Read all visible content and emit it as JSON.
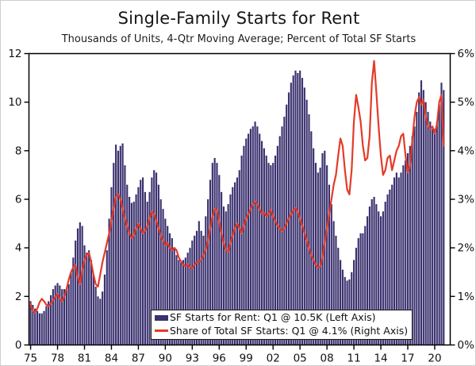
{
  "page": {
    "title": "Single-Family Starts for Rent",
    "subtitle": "Thousands of Units, 4-Qtr Moving Average; Percent of Total SF Starts"
  },
  "legend": {
    "bars_label": "SF Starts for Rent: Q1 @ 10.5K (Left Axis)",
    "line_label": "Share of Total SF Starts: Q1 @ 4.1% (Right Axis)"
  },
  "colors": {
    "bar": "#3a316f",
    "line": "#e53a28",
    "axis": "#000000",
    "tick_text": "#111111"
  },
  "chart_data": {
    "type": "bar",
    "title": "Single-Family Starts for Rent",
    "subtitle": "Thousands of Units, 4-Qtr Moving Average; Percent of Total SF Starts",
    "frequency": "quarterly",
    "start_period": "1975Q1",
    "end_period": "2021Q1",
    "x_tick_labels": [
      "75",
      "78",
      "81",
      "84",
      "87",
      "90",
      "93",
      "96",
      "99",
      "02",
      "05",
      "08",
      "11",
      "14",
      "17",
      "20"
    ],
    "left_axis": {
      "ticks": [
        0,
        2,
        4,
        6,
        8,
        10,
        12
      ],
      "range": [
        0,
        12
      ],
      "units": "thousands of units"
    },
    "right_axis": {
      "tick_labels": [
        "0%",
        "1%",
        "2%",
        "3%",
        "4%",
        "5%",
        "6%"
      ],
      "ticks": [
        0,
        1,
        2,
        3,
        4,
        5,
        6
      ],
      "range": [
        0,
        6
      ],
      "units": "percent of total SF starts"
    },
    "grid": false,
    "legend_position": "bottom-right-inside",
    "series": [
      {
        "name": "SF Starts for Rent",
        "type": "bar",
        "axis": "left",
        "latest_label": "Q1 @ 10.5K",
        "values": [
          1.8,
          1.65,
          1.5,
          1.4,
          1.3,
          1.3,
          1.4,
          1.6,
          1.8,
          2.05,
          2.3,
          2.45,
          2.55,
          2.45,
          2.3,
          2.3,
          2.3,
          2.5,
          3.0,
          3.6,
          4.3,
          4.8,
          5.05,
          4.9,
          4.1,
          3.8,
          3.9,
          3.5,
          2.9,
          2.4,
          2.0,
          1.9,
          2.2,
          2.9,
          3.9,
          5.2,
          6.5,
          7.5,
          8.25,
          8.0,
          8.2,
          8.3,
          7.4,
          6.6,
          6.1,
          5.85,
          5.9,
          6.2,
          6.5,
          6.8,
          6.9,
          6.3,
          5.9,
          6.3,
          6.9,
          7.2,
          7.1,
          6.6,
          6.0,
          5.6,
          5.2,
          4.9,
          4.6,
          4.4,
          4.0,
          3.7,
          3.5,
          3.4,
          3.5,
          3.6,
          3.8,
          4.0,
          4.3,
          4.5,
          4.7,
          5.1,
          4.7,
          4.5,
          5.3,
          6.0,
          6.8,
          7.5,
          7.7,
          7.5,
          7.0,
          6.3,
          5.7,
          5.5,
          5.8,
          6.2,
          6.5,
          6.7,
          6.9,
          7.2,
          7.8,
          8.2,
          8.5,
          8.7,
          8.9,
          9.0,
          9.2,
          9.0,
          8.7,
          8.4,
          8.1,
          7.8,
          7.5,
          7.4,
          7.5,
          7.8,
          8.2,
          8.6,
          9.0,
          9.4,
          9.9,
          10.4,
          10.8,
          11.1,
          11.3,
          11.2,
          11.3,
          11.0,
          10.6,
          10.1,
          9.5,
          8.8,
          8.1,
          7.5,
          7.1,
          7.3,
          7.9,
          8.0,
          7.4,
          6.6,
          5.8,
          5.1,
          4.5,
          4.0,
          3.5,
          3.1,
          2.8,
          2.65,
          2.7,
          3.0,
          3.5,
          4.0,
          4.4,
          4.6,
          4.6,
          4.9,
          5.3,
          5.7,
          6.0,
          6.1,
          5.8,
          5.5,
          5.3,
          5.5,
          5.9,
          6.2,
          6.4,
          6.6,
          6.9,
          7.1,
          6.9,
          7.1,
          7.4,
          7.6,
          7.9,
          8.2,
          8.6,
          9.0,
          9.6,
          10.4,
          10.9,
          10.5,
          10.0,
          9.6,
          9.2,
          8.9,
          8.9,
          9.2,
          9.9,
          10.8,
          10.5
        ]
      },
      {
        "name": "Share of Total SF Starts",
        "type": "line",
        "axis": "right",
        "latest_label": "Q1 @ 4.1%",
        "values": [
          0.85,
          0.7,
          0.67,
          0.75,
          0.88,
          0.95,
          0.9,
          0.83,
          0.8,
          0.85,
          0.92,
          1.0,
          1.05,
          0.95,
          0.9,
          1.0,
          1.15,
          1.35,
          1.5,
          1.6,
          1.65,
          1.4,
          1.25,
          1.55,
          1.75,
          1.85,
          1.9,
          1.7,
          1.45,
          1.25,
          1.2,
          1.45,
          1.7,
          1.9,
          2.1,
          2.3,
          2.55,
          2.8,
          3.05,
          3.1,
          3.0,
          2.8,
          2.6,
          2.45,
          2.3,
          2.2,
          2.25,
          2.4,
          2.5,
          2.4,
          2.3,
          2.35,
          2.45,
          2.6,
          2.75,
          2.7,
          2.55,
          2.4,
          2.25,
          2.15,
          2.05,
          2.1,
          2.0,
          1.95,
          2.0,
          1.95,
          1.8,
          1.72,
          1.65,
          1.62,
          1.66,
          1.6,
          1.58,
          1.65,
          1.7,
          1.72,
          1.75,
          1.85,
          1.95,
          2.15,
          2.4,
          2.65,
          2.8,
          2.78,
          2.55,
          2.3,
          2.1,
          1.95,
          1.92,
          2.1,
          2.25,
          2.4,
          2.5,
          2.4,
          2.3,
          2.45,
          2.6,
          2.7,
          2.8,
          2.9,
          2.95,
          2.9,
          2.8,
          2.7,
          2.72,
          2.65,
          2.7,
          2.78,
          2.65,
          2.55,
          2.45,
          2.4,
          2.35,
          2.4,
          2.5,
          2.6,
          2.7,
          2.78,
          2.82,
          2.75,
          2.6,
          2.45,
          2.3,
          2.15,
          2.0,
          1.85,
          1.75,
          1.65,
          1.6,
          1.62,
          1.8,
          2.1,
          2.4,
          2.7,
          3.0,
          3.3,
          3.5,
          3.9,
          4.25,
          4.1,
          3.6,
          3.2,
          3.1,
          3.6,
          4.6,
          5.15,
          4.9,
          4.6,
          4.1,
          3.8,
          3.85,
          4.3,
          5.4,
          5.85,
          5.2,
          4.5,
          3.9,
          3.5,
          3.6,
          3.85,
          3.9,
          3.6,
          3.8,
          4.0,
          4.1,
          4.3,
          4.35,
          3.9,
          3.55,
          3.7,
          4.2,
          4.7,
          5.0,
          5.1,
          4.95,
          5.05,
          4.7,
          4.5,
          4.45,
          4.5,
          4.35,
          4.55,
          5.0,
          5.15,
          4.1
        ]
      }
    ]
  }
}
